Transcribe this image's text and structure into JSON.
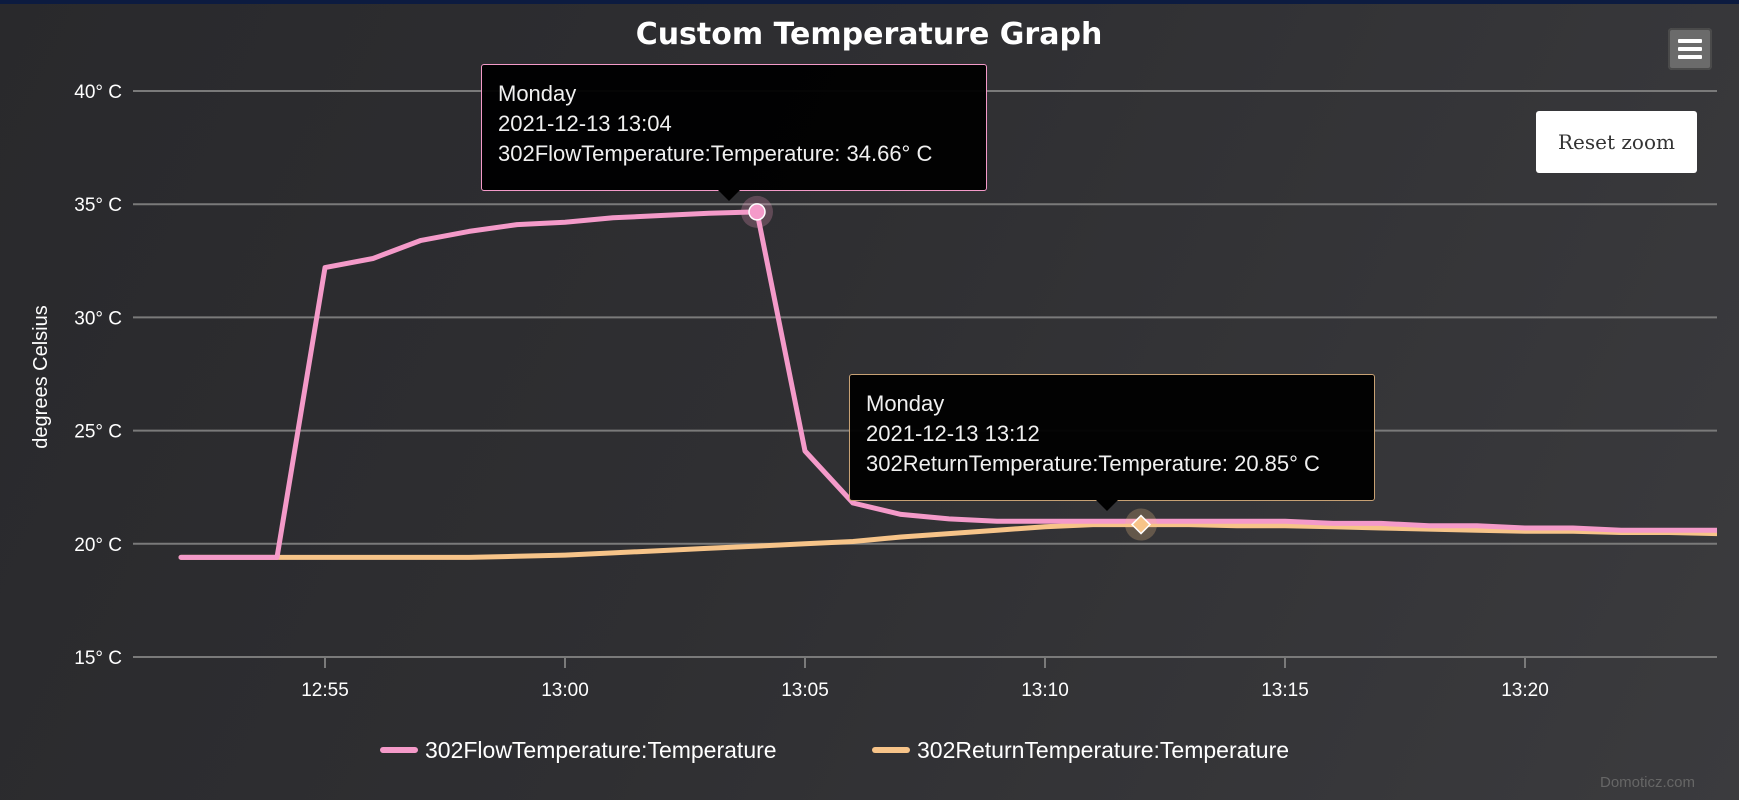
{
  "colors": {
    "flow": "#f49ac9",
    "return": "#f7c489",
    "grid": "#7a7a7a",
    "text": "#ffffff"
  },
  "chart_data": {
    "type": "line",
    "title": "Custom Temperature Graph",
    "ylabel": "degrees Celsius",
    "xlabel": "",
    "ylim": [
      15,
      40
    ],
    "xlim": [
      "12:51",
      "13:24"
    ],
    "y_ticks": [
      "15° C",
      "20° C",
      "25° C",
      "30° C",
      "35° C",
      "40° C"
    ],
    "x_ticks": [
      "12:55",
      "13:00",
      "13:05",
      "13:10",
      "13:15",
      "13:20"
    ],
    "date": "2021-12-13",
    "grid": true,
    "legend_position": "bottom",
    "series": [
      {
        "name": "302FlowTemperature:Temperature",
        "color": "#f49ac9",
        "x": [
          "12:52",
          "12:53",
          "12:54",
          "12:55",
          "12:56",
          "12:57",
          "12:58",
          "12:59",
          "13:00",
          "13:01",
          "13:02",
          "13:03",
          "13:04",
          "13:05",
          "13:06",
          "13:07",
          "13:08",
          "13:09",
          "13:10",
          "13:11",
          "13:12",
          "13:13",
          "13:14",
          "13:15",
          "13:16",
          "13:17",
          "13:18",
          "13:19",
          "13:20",
          "13:21",
          "13:22",
          "13:23",
          "13:24",
          "13:25"
        ],
        "y": [
          19.4,
          19.4,
          19.4,
          32.2,
          32.6,
          33.4,
          33.8,
          34.1,
          34.2,
          34.4,
          34.5,
          34.6,
          34.66,
          24.1,
          21.8,
          21.3,
          21.1,
          21.0,
          21.0,
          21.0,
          21.0,
          21.0,
          21.0,
          21.0,
          20.9,
          20.9,
          20.8,
          20.8,
          20.7,
          20.7,
          20.6,
          20.6,
          20.6,
          20.5
        ]
      },
      {
        "name": "302ReturnTemperature:Temperature",
        "color": "#f7c489",
        "x": [
          "12:52",
          "12:53",
          "12:54",
          "12:55",
          "12:56",
          "12:57",
          "12:58",
          "12:59",
          "13:00",
          "13:01",
          "13:02",
          "13:03",
          "13:04",
          "13:05",
          "13:06",
          "13:07",
          "13:08",
          "13:09",
          "13:10",
          "13:11",
          "13:12",
          "13:13",
          "13:14",
          "13:15",
          "13:16",
          "13:17",
          "13:18",
          "13:19",
          "13:20",
          "13:21",
          "13:22",
          "13:23",
          "13:24",
          "13:25"
        ],
        "y": [
          19.4,
          19.4,
          19.4,
          19.4,
          19.4,
          19.4,
          19.4,
          19.45,
          19.5,
          19.6,
          19.7,
          19.8,
          19.9,
          20.0,
          20.1,
          20.3,
          20.45,
          20.6,
          20.75,
          20.85,
          20.85,
          20.85,
          20.8,
          20.8,
          20.75,
          20.7,
          20.65,
          20.6,
          20.55,
          20.55,
          20.5,
          20.5,
          20.45,
          20.4
        ]
      }
    ]
  },
  "tooltips": [
    {
      "day": "Monday",
      "datetime": "2021-12-13 13:04",
      "text": "302FlowTemperature:Temperature: 34.66° C",
      "series": 0,
      "time": "13:04",
      "value": 34.66
    },
    {
      "day": "Monday",
      "datetime": "2021-12-13 13:12",
      "text": "302ReturnTemperature:Temperature: 20.85° C",
      "series": 1,
      "time": "13:12",
      "value": 20.85
    }
  ],
  "controls": {
    "reset_zoom": "Reset zoom",
    "menu_icon": "hamburger-menu-icon"
  },
  "credits": "Domoticz.com"
}
